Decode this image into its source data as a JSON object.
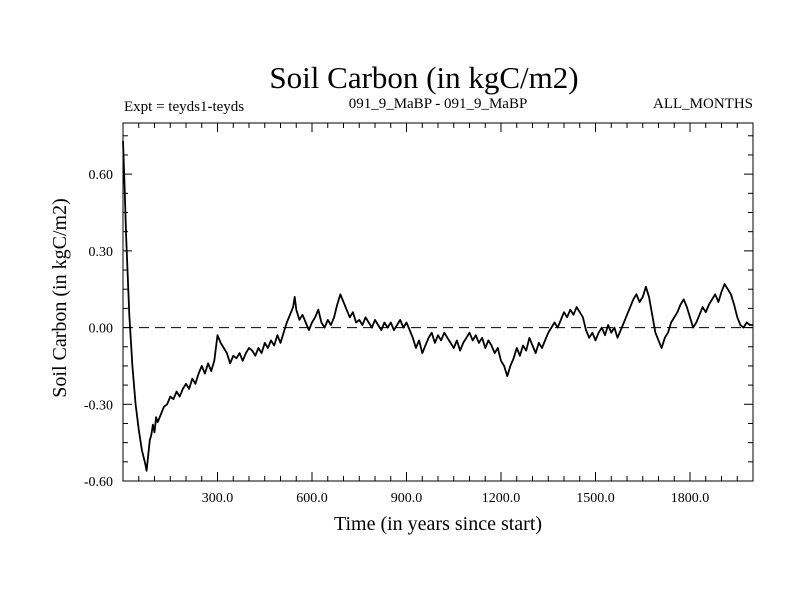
{
  "chart_data": {
    "type": "line",
    "title": "Soil Carbon (in kgC/m2)",
    "subtitle_left": "Expt = teyds1-teyds",
    "subtitle_center": "091_9_MaBP - 091_9_MaBP",
    "subtitle_right": "ALL_MONTHS",
    "xlabel": "Time (in years since start)",
    "ylabel": "Soil Carbon (in kgC/m2)",
    "xlim": [
      0,
      2000
    ],
    "ylim": [
      -0.6,
      0.8
    ],
    "x_ticks": [
      300,
      600,
      900,
      1200,
      1500,
      1800
    ],
    "x_tick_labels": [
      "300.0",
      "600.0",
      "900.0",
      "1200.0",
      "1500.0",
      "1800.0"
    ],
    "y_ticks": [
      -0.6,
      -0.3,
      0.0,
      0.3,
      0.6
    ],
    "y_tick_labels": [
      "-0.60",
      "-0.30",
      "0.00",
      "0.30",
      "0.60"
    ],
    "reference_line": {
      "y": 0.0,
      "style": "dashed"
    },
    "series": [
      {
        "name": "Soil Carbon",
        "points": [
          [
            0,
            0.73
          ],
          [
            5,
            0.55
          ],
          [
            10,
            0.35
          ],
          [
            20,
            0.05
          ],
          [
            30,
            -0.15
          ],
          [
            40,
            -0.3
          ],
          [
            50,
            -0.4
          ],
          [
            60,
            -0.48
          ],
          [
            70,
            -0.53
          ],
          [
            75,
            -0.56
          ],
          [
            80,
            -0.5
          ],
          [
            85,
            -0.44
          ],
          [
            90,
            -0.42
          ],
          [
            95,
            -0.38
          ],
          [
            100,
            -0.41
          ],
          [
            105,
            -0.35
          ],
          [
            110,
            -0.37
          ],
          [
            120,
            -0.34
          ],
          [
            130,
            -0.31
          ],
          [
            140,
            -0.3
          ],
          [
            150,
            -0.27
          ],
          [
            160,
            -0.28
          ],
          [
            170,
            -0.25
          ],
          [
            180,
            -0.27
          ],
          [
            190,
            -0.24
          ],
          [
            200,
            -0.22
          ],
          [
            210,
            -0.24
          ],
          [
            220,
            -0.2
          ],
          [
            230,
            -0.22
          ],
          [
            240,
            -0.18
          ],
          [
            250,
            -0.15
          ],
          [
            260,
            -0.18
          ],
          [
            270,
            -0.14
          ],
          [
            280,
            -0.17
          ],
          [
            290,
            -0.13
          ],
          [
            300,
            -0.03
          ],
          [
            310,
            -0.06
          ],
          [
            320,
            -0.08
          ],
          [
            330,
            -0.1
          ],
          [
            340,
            -0.14
          ],
          [
            350,
            -0.11
          ],
          [
            360,
            -0.12
          ],
          [
            370,
            -0.1
          ],
          [
            380,
            -0.13
          ],
          [
            390,
            -0.1
          ],
          [
            400,
            -0.08
          ],
          [
            410,
            -0.09
          ],
          [
            420,
            -0.11
          ],
          [
            430,
            -0.08
          ],
          [
            440,
            -0.1
          ],
          [
            450,
            -0.06
          ],
          [
            460,
            -0.08
          ],
          [
            470,
            -0.05
          ],
          [
            480,
            -0.07
          ],
          [
            490,
            -0.03
          ],
          [
            500,
            -0.06
          ],
          [
            510,
            -0.02
          ],
          [
            520,
            0.02
          ],
          [
            530,
            0.05
          ],
          [
            540,
            0.08
          ],
          [
            545,
            0.12
          ],
          [
            550,
            0.07
          ],
          [
            560,
            0.03
          ],
          [
            570,
            0.05
          ],
          [
            580,
            0.02
          ],
          [
            590,
            -0.01
          ],
          [
            600,
            0.02
          ],
          [
            610,
            0.04
          ],
          [
            620,
            0.07
          ],
          [
            630,
            0.02
          ],
          [
            640,
            0.0
          ],
          [
            650,
            0.03
          ],
          [
            660,
            0.01
          ],
          [
            670,
            0.04
          ],
          [
            680,
            0.09
          ],
          [
            690,
            0.13
          ],
          [
            700,
            0.1
          ],
          [
            710,
            0.07
          ],
          [
            720,
            0.04
          ],
          [
            730,
            0.06
          ],
          [
            740,
            0.02
          ],
          [
            750,
            0.03
          ],
          [
            760,
            0.01
          ],
          [
            770,
            0.04
          ],
          [
            780,
            0.02
          ],
          [
            790,
            0.0
          ],
          [
            800,
            0.03
          ],
          [
            810,
            0.01
          ],
          [
            820,
            -0.01
          ],
          [
            830,
            0.02
          ],
          [
            840,
            0.0
          ],
          [
            850,
            0.02
          ],
          [
            860,
            -0.01
          ],
          [
            870,
            0.01
          ],
          [
            880,
            0.03
          ],
          [
            890,
            0.0
          ],
          [
            900,
            0.02
          ],
          [
            910,
            -0.01
          ],
          [
            920,
            -0.04
          ],
          [
            930,
            -0.08
          ],
          [
            940,
            -0.05
          ],
          [
            950,
            -0.1
          ],
          [
            960,
            -0.07
          ],
          [
            970,
            -0.04
          ],
          [
            980,
            -0.02
          ],
          [
            990,
            -0.06
          ],
          [
            1000,
            -0.03
          ],
          [
            1010,
            -0.05
          ],
          [
            1020,
            -0.02
          ],
          [
            1030,
            -0.04
          ],
          [
            1040,
            -0.06
          ],
          [
            1050,
            -0.08
          ],
          [
            1060,
            -0.05
          ],
          [
            1070,
            -0.09
          ],
          [
            1080,
            -0.06
          ],
          [
            1090,
            -0.04
          ],
          [
            1100,
            -0.02
          ],
          [
            1110,
            -0.05
          ],
          [
            1120,
            -0.03
          ],
          [
            1130,
            -0.06
          ],
          [
            1140,
            -0.04
          ],
          [
            1150,
            -0.08
          ],
          [
            1160,
            -0.05
          ],
          [
            1170,
            -0.07
          ],
          [
            1180,
            -0.1
          ],
          [
            1190,
            -0.08
          ],
          [
            1200,
            -0.13
          ],
          [
            1210,
            -0.15
          ],
          [
            1220,
            -0.19
          ],
          [
            1230,
            -0.15
          ],
          [
            1240,
            -0.12
          ],
          [
            1250,
            -0.08
          ],
          [
            1260,
            -0.11
          ],
          [
            1270,
            -0.07
          ],
          [
            1280,
            -0.09
          ],
          [
            1290,
            -0.04
          ],
          [
            1300,
            -0.07
          ],
          [
            1310,
            -0.1
          ],
          [
            1320,
            -0.06
          ],
          [
            1330,
            -0.08
          ],
          [
            1340,
            -0.05
          ],
          [
            1350,
            -0.02
          ],
          [
            1360,
            0.0
          ],
          [
            1370,
            0.02
          ],
          [
            1380,
            0.0
          ],
          [
            1390,
            0.03
          ],
          [
            1400,
            0.06
          ],
          [
            1410,
            0.04
          ],
          [
            1420,
            0.07
          ],
          [
            1430,
            0.05
          ],
          [
            1440,
            0.08
          ],
          [
            1450,
            0.06
          ],
          [
            1460,
            0.04
          ],
          [
            1470,
            -0.01
          ],
          [
            1480,
            -0.04
          ],
          [
            1490,
            -0.02
          ],
          [
            1500,
            -0.05
          ],
          [
            1510,
            -0.02
          ],
          [
            1520,
            0.0
          ],
          [
            1530,
            -0.03
          ],
          [
            1540,
            0.01
          ],
          [
            1550,
            -0.02
          ],
          [
            1560,
            0.0
          ],
          [
            1570,
            -0.04
          ],
          [
            1580,
            -0.01
          ],
          [
            1590,
            0.02
          ],
          [
            1600,
            0.05
          ],
          [
            1610,
            0.08
          ],
          [
            1620,
            0.11
          ],
          [
            1630,
            0.13
          ],
          [
            1640,
            0.1
          ],
          [
            1650,
            0.12
          ],
          [
            1660,
            0.16
          ],
          [
            1670,
            0.12
          ],
          [
            1680,
            0.05
          ],
          [
            1690,
            -0.02
          ],
          [
            1700,
            -0.05
          ],
          [
            1710,
            -0.08
          ],
          [
            1720,
            -0.04
          ],
          [
            1730,
            -0.02
          ],
          [
            1740,
            0.02
          ],
          [
            1750,
            0.04
          ],
          [
            1760,
            0.06
          ],
          [
            1770,
            0.09
          ],
          [
            1780,
            0.11
          ],
          [
            1790,
            0.08
          ],
          [
            1800,
            0.04
          ],
          [
            1810,
            0.0
          ],
          [
            1820,
            0.02
          ],
          [
            1830,
            0.05
          ],
          [
            1840,
            0.08
          ],
          [
            1850,
            0.06
          ],
          [
            1860,
            0.09
          ],
          [
            1870,
            0.11
          ],
          [
            1880,
            0.13
          ],
          [
            1890,
            0.1
          ],
          [
            1900,
            0.14
          ],
          [
            1910,
            0.17
          ],
          [
            1920,
            0.15
          ],
          [
            1930,
            0.13
          ],
          [
            1940,
            0.09
          ],
          [
            1950,
            0.04
          ],
          [
            1960,
            0.01
          ],
          [
            1970,
            0.0
          ],
          [
            1980,
            0.02
          ],
          [
            1990,
            0.01
          ],
          [
            2000,
            0.01
          ]
        ]
      }
    ]
  }
}
